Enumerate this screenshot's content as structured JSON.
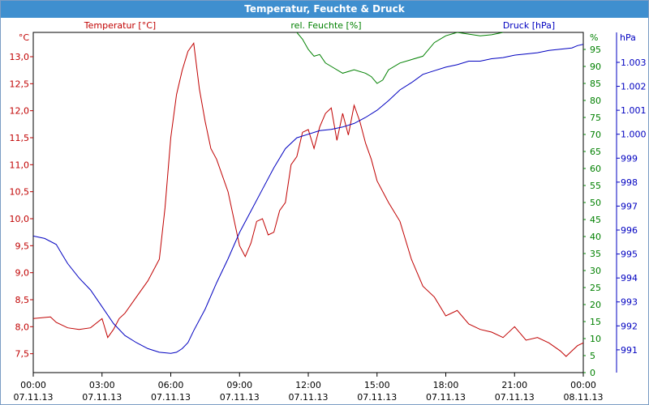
{
  "title": "Temperatur, Feuchte & Druck",
  "colors": {
    "temperature": "#c00000",
    "humidity": "#008000",
    "pressure": "#0000c0",
    "titlebar": "#3f8fcf"
  },
  "chart_data": {
    "type": "line",
    "grid": true,
    "x_ticks": [
      {
        "time": "00:00",
        "date": "07.11.13"
      },
      {
        "time": "03:00",
        "date": "07.11.13"
      },
      {
        "time": "06:00",
        "date": "07.11.13"
      },
      {
        "time": "09:00",
        "date": "07.11.13"
      },
      {
        "time": "12:00",
        "date": "07.11.13"
      },
      {
        "time": "15:00",
        "date": "07.11.13"
      },
      {
        "time": "18:00",
        "date": "07.11.13"
      },
      {
        "time": "21:00",
        "date": "07.11.13"
      },
      {
        "time": "00:00",
        "date": "08.11.13"
      }
    ],
    "xlim_hours": [
      0,
      24
    ],
    "axes": {
      "temperature": {
        "label": "Temperatur [°C]",
        "unit": "°C",
        "ylim": [
          7.15,
          13.45
        ],
        "ticks": [
          "7,5",
          "8,0",
          "8,5",
          "9,0",
          "9,5",
          "10,0",
          "10,5",
          "11,0",
          "11,5",
          "12,0",
          "12,5",
          "13,0"
        ]
      },
      "humidity": {
        "label": "rel. Feuchte [%]",
        "unit": "%",
        "ylim": [
          0,
          100
        ],
        "ticks": [
          "0",
          "5",
          "10",
          "15",
          "20",
          "25",
          "30",
          "35",
          "40",
          "45",
          "50",
          "55",
          "60",
          "65",
          "70",
          "75",
          "80",
          "85",
          "90",
          "95"
        ]
      },
      "pressure": {
        "label": "Druck [hPa]",
        "unit": "hPa",
        "ylim": [
          990.05,
          1004.25
        ],
        "ticks": [
          "991",
          "992",
          "993",
          "994",
          "995",
          "996",
          "997",
          "998",
          "999",
          "1.000",
          "1.001",
          "1.002",
          "1.003"
        ]
      }
    },
    "series": [
      {
        "name": "Temperatur [°C]",
        "axis": "temperature",
        "x": [
          0,
          0.75,
          1,
          1.5,
          2,
          2.5,
          3,
          3.25,
          3.5,
          3.75,
          4,
          4.5,
          5,
          5.5,
          5.75,
          6,
          6.25,
          6.5,
          6.75,
          7,
          7.25,
          7.5,
          7.75,
          8,
          8.5,
          9,
          9.25,
          9.5,
          9.75,
          10,
          10.25,
          10.5,
          10.75,
          11,
          11.25,
          11.5,
          11.75,
          12,
          12.25,
          12.5,
          12.75,
          13,
          13.25,
          13.5,
          13.75,
          14,
          14.25,
          14.5,
          14.75,
          15,
          15.5,
          16,
          16.5,
          17,
          17.5,
          18,
          18.5,
          19,
          19.5,
          20,
          20.5,
          21,
          21.5,
          22,
          22.5,
          23,
          23.25,
          23.5,
          23.75,
          24
        ],
        "values": [
          8.15,
          8.18,
          8.08,
          7.98,
          7.95,
          7.98,
          8.15,
          7.8,
          7.95,
          8.15,
          8.25,
          8.55,
          8.85,
          9.25,
          10.2,
          11.5,
          12.3,
          12.75,
          13.1,
          13.25,
          12.4,
          11.8,
          11.3,
          11.1,
          10.5,
          9.5,
          9.3,
          9.55,
          9.95,
          10.0,
          9.7,
          9.75,
          10.15,
          10.3,
          11.0,
          11.15,
          11.6,
          11.65,
          11.3,
          11.7,
          11.95,
          12.05,
          11.45,
          11.95,
          11.55,
          12.1,
          11.8,
          11.4,
          11.1,
          10.7,
          10.3,
          9.95,
          9.25,
          8.75,
          8.55,
          8.2,
          8.3,
          8.05,
          7.95,
          7.9,
          7.8,
          8.0,
          7.75,
          7.8,
          7.7,
          7.55,
          7.45,
          7.55,
          7.65,
          7.7
        ]
      },
      {
        "name": "rel. Feuchte [%]",
        "axis": "humidity",
        "x": [
          11.5,
          11.75,
          12,
          12.25,
          12.5,
          12.75,
          13,
          13.5,
          14,
          14.5,
          14.75,
          15,
          15.25,
          15.5,
          16,
          16.5,
          17,
          17.5,
          18,
          18.5,
          19,
          19.5,
          20,
          20.5
        ],
        "values": [
          100,
          98,
          95,
          93,
          93.5,
          91,
          90,
          88,
          89,
          88,
          87,
          85,
          86,
          89,
          91,
          92,
          93,
          97,
          99,
          100,
          99.5,
          99,
          99.3,
          100
        ]
      },
      {
        "name": "Druck [hPa]",
        "axis": "pressure",
        "x": [
          0,
          0.5,
          1,
          1.25,
          1.5,
          2,
          2.5,
          3,
          3.5,
          4,
          4.5,
          5,
          5.5,
          6,
          6.25,
          6.5,
          6.75,
          7,
          7.5,
          8,
          8.5,
          9,
          9.5,
          10,
          10.5,
          11,
          11.5,
          12,
          12.5,
          13,
          13.5,
          14,
          14.5,
          15,
          15.5,
          16,
          16.5,
          17,
          17.5,
          18,
          18.5,
          19,
          19.5,
          20,
          20.5,
          21,
          21.5,
          22,
          22.5,
          23,
          23.5,
          23.75,
          24
        ],
        "values": [
          995.75,
          995.65,
          995.4,
          995.0,
          994.6,
          994.0,
          993.5,
          992.8,
          992.1,
          991.6,
          991.3,
          991.05,
          990.9,
          990.85,
          990.9,
          991.05,
          991.3,
          991.8,
          992.7,
          993.8,
          994.8,
          995.9,
          996.8,
          997.7,
          998.6,
          999.4,
          999.85,
          1000.0,
          1000.15,
          1000.2,
          1000.3,
          1000.45,
          1000.7,
          1001.0,
          1001.4,
          1001.85,
          1002.15,
          1002.5,
          1002.65,
          1002.8,
          1002.9,
          1003.05,
          1003.05,
          1003.15,
          1003.2,
          1003.3,
          1003.35,
          1003.4,
          1003.5,
          1003.55,
          1003.6,
          1003.7,
          1003.75
        ]
      }
    ]
  }
}
